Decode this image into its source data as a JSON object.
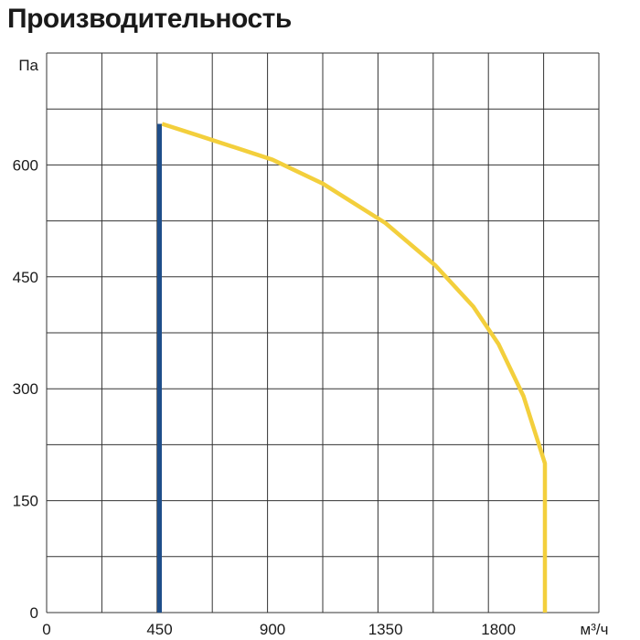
{
  "chart_data": {
    "type": "line",
    "title": "Производительность",
    "xlabel": "м³/ч",
    "ylabel": "Па",
    "xlim": [
      0,
      2200
    ],
    "ylim": [
      0,
      750
    ],
    "x_ticks": [
      0,
      450,
      900,
      1350,
      1800
    ],
    "y_ticks": [
      0,
      150,
      300,
      450,
      600
    ],
    "grid": true,
    "series": [
      {
        "color": "#1f4e8a",
        "x": [
          450,
          450
        ],
        "y": [
          0,
          655
        ]
      },
      {
        "color": "#f3cf3c",
        "x": [
          460,
          600,
          900,
          1100,
          1350,
          1550,
          1700,
          1800,
          1900,
          1985,
          1985
        ],
        "y": [
          655,
          640,
          607,
          575,
          522,
          465,
          410,
          360,
          290,
          200,
          0
        ]
      }
    ]
  }
}
